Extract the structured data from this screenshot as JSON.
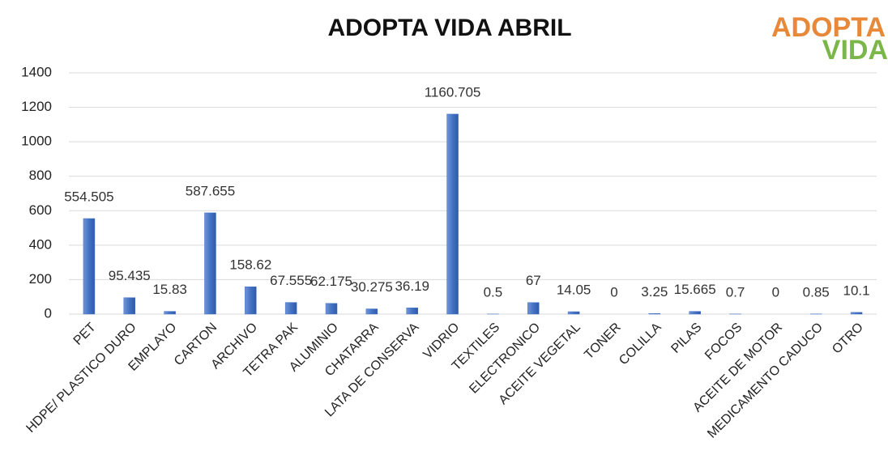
{
  "chart_data": {
    "type": "bar",
    "title": "ADOPTA VIDA ABRIL",
    "logo": {
      "line1": "ADOPTA",
      "line2": "VIDA"
    },
    "categories": [
      "PET",
      "HDPE/ PLASTICO DURO",
      "EMPLAYO",
      "CARTON",
      "ARCHIVO",
      "TETRA PAK",
      "ALUMINIO",
      "CHATARRA",
      "LATA DE CONSERVA",
      "VIDRIO",
      "TEXTILES",
      "ELECTRONICO",
      "ACEITE VEGETAL",
      "TONER",
      "COLILLA",
      "PILAS",
      "FOCOS",
      "ACEITE DE MOTOR",
      "MEDICAMENTO CADUCO",
      "OTRO"
    ],
    "values": [
      554.505,
      95.435,
      15.83,
      587.655,
      158.62,
      67.555,
      62.175,
      30.275,
      36.19,
      1160.705,
      0.5,
      67,
      14.05,
      0,
      3.25,
      15.665,
      0.7,
      0,
      0.85,
      10.1
    ],
    "color": "#4472c4",
    "ylim": [
      0,
      1400
    ],
    "yticks": [
      0,
      200,
      400,
      600,
      800,
      1000,
      1200,
      1400
    ],
    "grid": true
  }
}
